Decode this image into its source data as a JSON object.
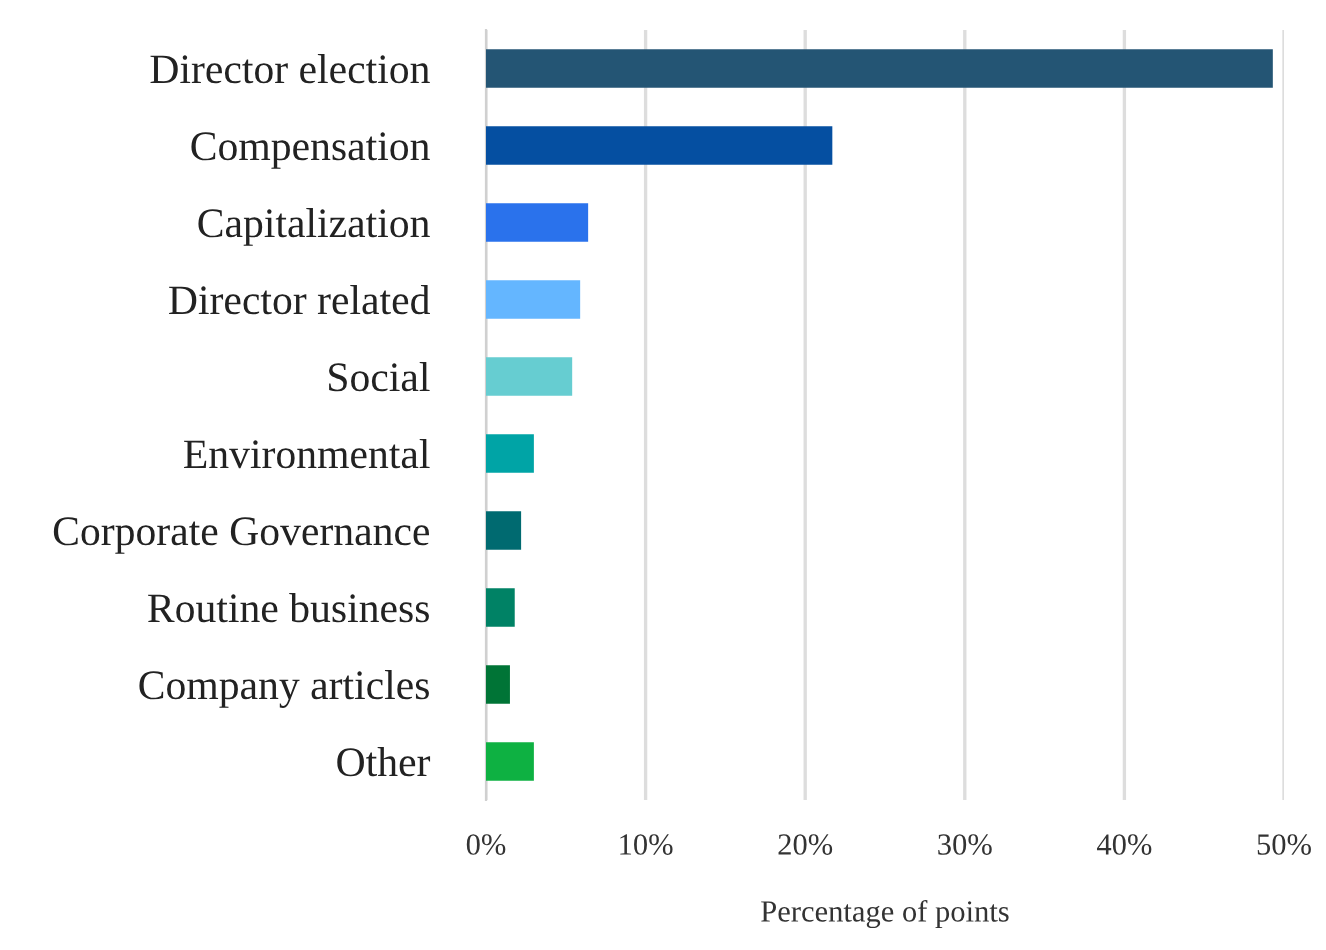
{
  "chart_data": {
    "type": "bar",
    "orientation": "horizontal",
    "xlabel": "Percentage of points",
    "categories": [
      "Director election",
      "Compensation",
      "Capitalization",
      "Director related",
      "Social",
      "Environmental",
      "Corporate Governance",
      "Routine business",
      "Company articles",
      "Other"
    ],
    "values": [
      49.3,
      21.7,
      6.4,
      5.9,
      5.4,
      3.0,
      2.2,
      1.8,
      1.5,
      3.0
    ],
    "colors": [
      "#245574",
      "#054fa1",
      "#2a72ec",
      "#64b6ff",
      "#66cdd1",
      "#00a4a6",
      "#006a70",
      "#008265",
      "#007436",
      "#0eb142"
    ],
    "xlim": [
      0,
      50
    ],
    "xticks": [
      {
        "value": 0,
        "label": "0%"
      },
      {
        "value": 10,
        "label": "10%"
      },
      {
        "value": 20,
        "label": "20%"
      },
      {
        "value": 30,
        "label": "30%"
      },
      {
        "value": 40,
        "label": "40%"
      },
      {
        "value": 50,
        "label": "50%"
      }
    ],
    "grid": "x"
  }
}
